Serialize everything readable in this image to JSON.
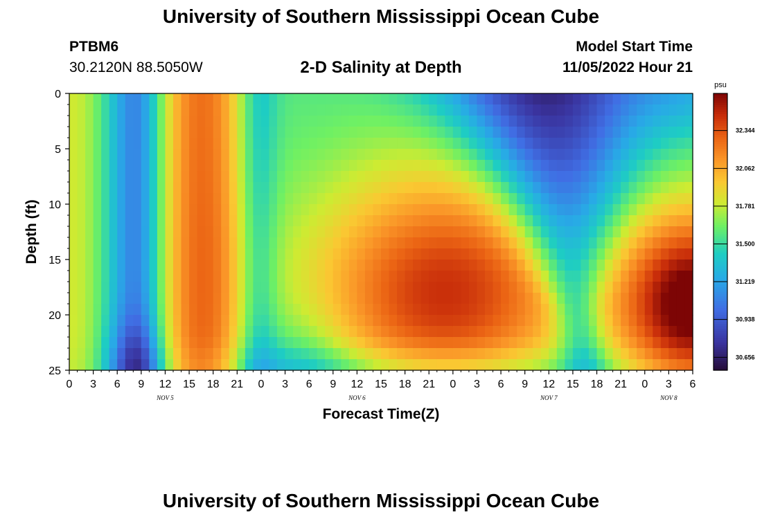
{
  "page": {
    "title_top": "University of Southern Mississippi Ocean Cube",
    "title_bottom": "University of Southern Mississippi Ocean Cube",
    "station_id": "PTBM6",
    "station_coords": "30.2120N  88.5050W",
    "plot_title": "2-D Salinity at Depth",
    "model_start_label": "Model Start Time",
    "model_start_value": "11/05/2022 Hour 21"
  },
  "chart_data": {
    "type": "heatmap",
    "title": "2-D Salinity at Depth",
    "xlabel": "Forecast Time(Z)",
    "ylabel": "Depth (ft)",
    "ylim": [
      0,
      25
    ],
    "y_ticks": [
      "0",
      "5",
      "10",
      "15",
      "20",
      "25"
    ],
    "x_tick_labels": [
      "0",
      "3",
      "6",
      "9",
      "12",
      "15",
      "18",
      "21",
      "0",
      "3",
      "6",
      "9",
      "12",
      "15",
      "18",
      "21",
      "0",
      "3",
      "6",
      "9",
      "12",
      "15",
      "18",
      "21",
      "0",
      "3",
      "6"
    ],
    "x_range_hours": [
      0,
      78
    ],
    "day_labels": [
      {
        "label": "NOV 5",
        "hour": 12
      },
      {
        "label": "NOV 6",
        "hour": 36
      },
      {
        "label": "NOV 7",
        "hour": 60
      },
      {
        "label": "NOV 8",
        "hour": 75
      }
    ],
    "colorbar": {
      "unit": "psu",
      "ticks": [
        "32.344",
        "32.062",
        "31.781",
        "31.500",
        "31.219",
        "30.938",
        "30.656"
      ],
      "tick_values": [
        32.344,
        32.062,
        31.781,
        31.5,
        31.219,
        30.938,
        30.656
      ],
      "range": [
        30.56,
        32.62
      ]
    },
    "salinity_features": [
      {
        "desc": "high band",
        "hour_center": 16.5,
        "salinity": 32.2
      },
      {
        "desc": "high body",
        "hour_center": 47,
        "depth_center": 19,
        "salinity": 32.4
      },
      {
        "desc": "low wedge",
        "hour_center": 62,
        "depth_top": 0,
        "salinity": 30.7
      },
      {
        "desc": "high bulb",
        "hour_center": 78,
        "depth_center": 19,
        "salinity": 32.6
      }
    ]
  }
}
